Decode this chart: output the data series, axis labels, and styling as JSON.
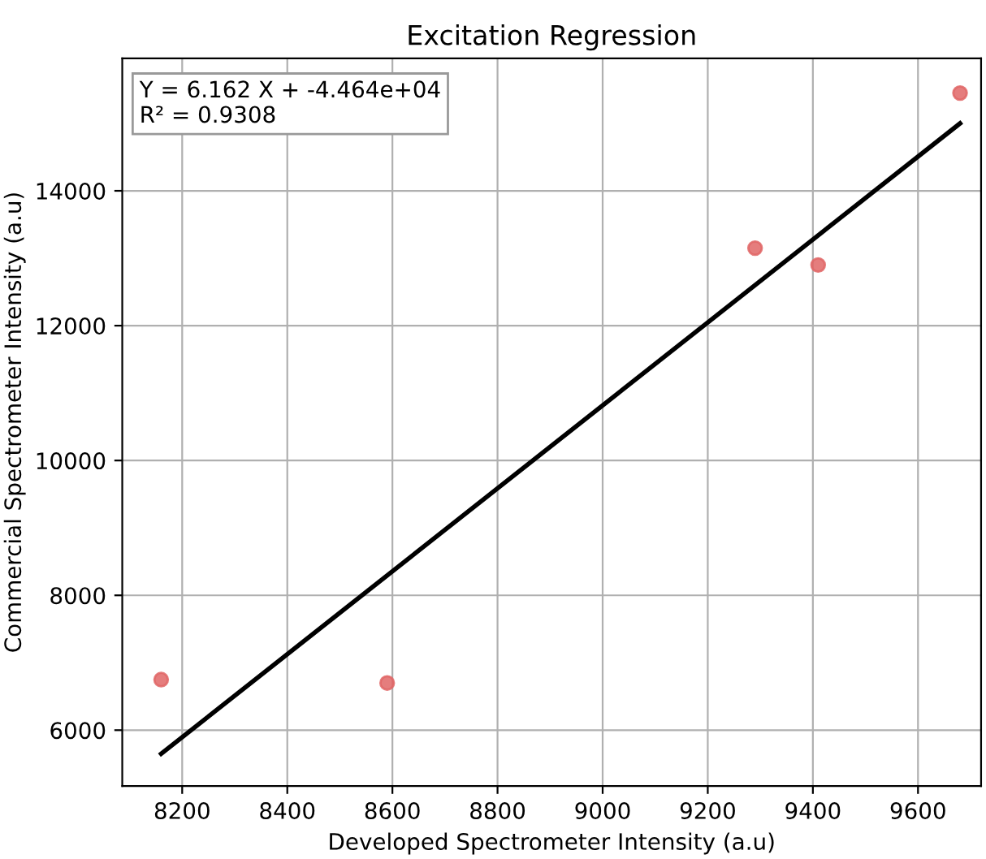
{
  "chart_data": {
    "type": "scatter",
    "title": "Excitation Regression",
    "xlabel": "Developed Spectrometer Intensity (a.u)",
    "ylabel": "Commercial Spectrometer Intensity (a.u)",
    "series": [
      {
        "color": "#e06666",
        "marker": "circle",
        "x": [
          8160,
          8590,
          9290,
          9410,
          9680
        ],
        "values": [
          6750,
          6700,
          13150,
          12900,
          15450
        ]
      },
      {
        "type": "line",
        "color": "#000000",
        "marker": "none",
        "x": [
          8160,
          9680
        ],
        "values": [
          5650,
          15000
        ]
      }
    ],
    "annotations": [
      "Y = 6.162 X + -4.464e+04\nR² = 0.9308"
    ],
    "xlim": [
      8086,
      9720
    ],
    "ylim": [
      5172,
      15964
    ],
    "xticks": [
      8200,
      8400,
      8600,
      8800,
      9000,
      9200,
      9400,
      9600
    ],
    "yticks": [
      6000,
      8000,
      10000,
      12000,
      14000
    ],
    "grid": true
  }
}
